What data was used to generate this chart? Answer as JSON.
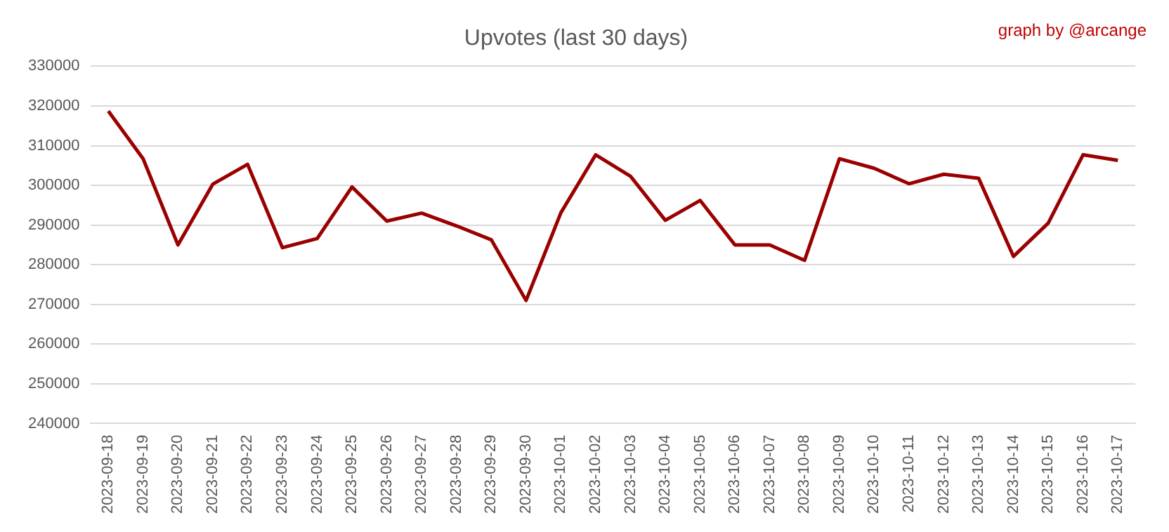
{
  "chart_data": {
    "type": "line",
    "title": "Upvotes (last 30 days)",
    "annotations": [
      "graph by @arcange"
    ],
    "categories": [
      "2023-09-18",
      "2023-09-19",
      "2023-09-20",
      "2023-09-21",
      "2023-09-22",
      "2023-09-23",
      "2023-09-24",
      "2023-09-25",
      "2023-09-26",
      "2023-09-27",
      "2023-09-28",
      "2023-09-29",
      "2023-09-30",
      "2023-10-01",
      "2023-10-02",
      "2023-10-03",
      "2023-10-04",
      "2023-10-05",
      "2023-10-06",
      "2023-10-07",
      "2023-10-08",
      "2023-10-09",
      "2023-10-10",
      "2023-10-11",
      "2023-10-12",
      "2023-10-13",
      "2023-10-14",
      "2023-10-15",
      "2023-10-16",
      "2023-10-17"
    ],
    "series": [
      {
        "color": "#9b0000",
        "values": [
          318700,
          306700,
          285000,
          300300,
          305300,
          284300,
          286600,
          299600,
          291000,
          293000,
          289800,
          286300,
          271000,
          293100,
          307700,
          302300,
          291200,
          296200,
          285000,
          285000,
          281100,
          306700,
          304300,
          300400,
          302800,
          301800,
          282100,
          290500,
          307700,
          306300
        ]
      }
    ],
    "ylim": [
      240000,
      330000
    ],
    "yticks": [
      240000,
      250000,
      260000,
      270000,
      280000,
      290000,
      300000,
      310000,
      320000,
      330000
    ],
    "grid": "y",
    "legend": false,
    "marker": "none",
    "line_style": "solid"
  }
}
